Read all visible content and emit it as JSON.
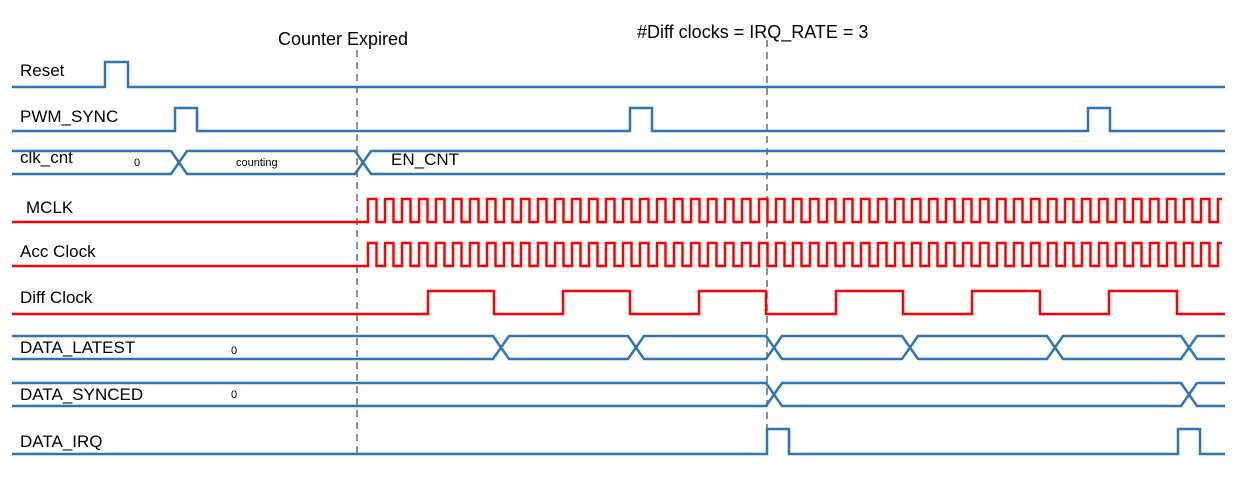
{
  "diagram": {
    "annotations": {
      "counter_expired": "Counter Expired",
      "diff_clocks": "#Diff clocks = IRQ_RATE = 3"
    },
    "signals": {
      "reset": {
        "label": "Reset"
      },
      "pwm_sync": {
        "label": "PWM_SYNC"
      },
      "clk_cnt": {
        "label": "clk_cnt",
        "values": [
          "0",
          "counting",
          "EN_CNT"
        ]
      },
      "mclk": {
        "label": "MCLK"
      },
      "acc_clock": {
        "label": "Acc Clock"
      },
      "diff_clock": {
        "label": "Diff Clock"
      },
      "data_latest": {
        "label": "DATA_LATEST",
        "values": [
          "0"
        ]
      },
      "data_synced": {
        "label": "DATA_SYNCED",
        "values": [
          "0"
        ]
      },
      "data_irq": {
        "label": "DATA_IRQ"
      }
    },
    "colors": {
      "control": "#2e75b6",
      "clock": "#ff0000",
      "marker": "#555555"
    }
  }
}
